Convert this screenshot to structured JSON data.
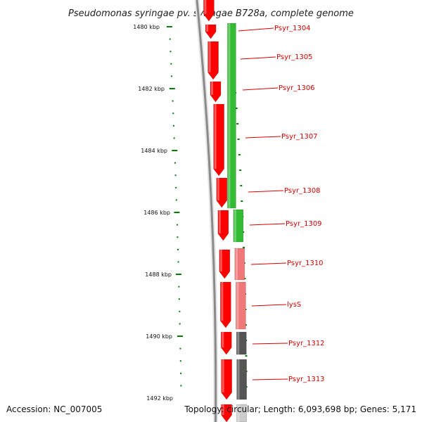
{
  "title": "Pseudomonas syringae pv. syringae B728a, complete genome",
  "accession": "Accession: NC_007005",
  "summary": "Topology: circular; Length: 6,093,698 bp; Genes: 5,171",
  "colors": {
    "backbone": "#8a8a8a",
    "forward": "#ff0000",
    "reverse_green": "#33bb33",
    "reverse_pink": "#f07878",
    "reverse_gray": "#555555",
    "label": "#dd0000",
    "ticks": "#008000"
  },
  "scale": [
    {
      "label": "1480 kbp",
      "kbp": 1480
    },
    {
      "label": "1482 kbp",
      "kbp": 1482
    },
    {
      "label": "1484 kbp",
      "kbp": 1484
    },
    {
      "label": "1486 kbp",
      "kbp": 1486
    },
    {
      "label": "1488 kbp",
      "kbp": 1488
    },
    {
      "label": "1490 kbp",
      "kbp": 1490
    },
    {
      "label": "1492 kbp",
      "kbp": 1492
    }
  ],
  "labels": [
    "Psyr_1304",
    "Psyr_1305",
    "Psyr_1306",
    "Psyr_1307",
    "Psyr_1308",
    "Psyr_1309",
    "Psyr_1310",
    "lysS",
    "Psyr_1312",
    "Psyr_1313"
  ]
}
